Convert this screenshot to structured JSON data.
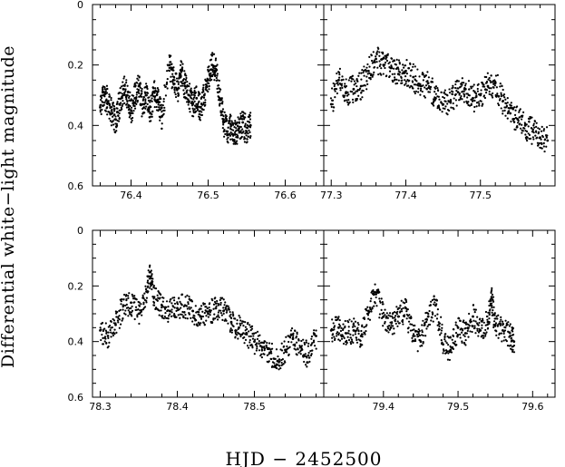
{
  "chart_data": {
    "type": "scatter",
    "xlabel": "HJD − 2452500",
    "ylabel": "Differential white−light magnitude",
    "ylim": [
      0.6,
      0
    ],
    "y_axis_inverted": true,
    "grid": false,
    "panels": [
      {
        "id": "top-left",
        "xlim": [
          76.35,
          76.65
        ],
        "xticks": [
          "76.4",
          "76.5",
          "76.6"
        ],
        "yticks": [
          "0",
          "0.2",
          "0.4",
          "0.6"
        ],
        "series": [
          {
            "x": [
              76.36,
              76.365,
              76.37,
              76.375,
              76.38,
              76.385,
              76.39,
              76.395,
              76.4,
              76.405,
              76.41,
              76.415,
              76.42,
              76.425,
              76.43,
              76.435,
              76.44,
              76.45,
              76.455,
              76.46,
              76.465,
              76.47,
              76.475,
              76.48,
              76.485,
              76.49,
              76.495,
              76.5,
              76.505,
              76.51,
              76.515,
              76.52,
              76.525,
              76.53,
              76.535,
              76.54,
              76.545,
              76.55,
              76.555
            ],
            "y": [
              0.34,
              0.3,
              0.32,
              0.36,
              0.38,
              0.33,
              0.28,
              0.3,
              0.35,
              0.31,
              0.27,
              0.33,
              0.3,
              0.36,
              0.29,
              0.32,
              0.37,
              0.2,
              0.25,
              0.28,
              0.22,
              0.27,
              0.3,
              0.33,
              0.31,
              0.34,
              0.3,
              0.25,
              0.2,
              0.22,
              0.31,
              0.38,
              0.42,
              0.4,
              0.43,
              0.41,
              0.39,
              0.42,
              0.4
            ]
          }
        ]
      },
      {
        "id": "top-right",
        "xlim": [
          77.29,
          77.6
        ],
        "xticks": [
          "77.3",
          "77.4",
          "77.5"
        ],
        "yticks": [],
        "series": [
          {
            "x": [
              77.3,
              77.31,
              77.32,
              77.33,
              77.34,
              77.35,
              77.36,
              77.37,
              77.38,
              77.39,
              77.4,
              77.41,
              77.42,
              77.43,
              77.44,
              77.45,
              77.46,
              77.47,
              77.48,
              77.49,
              77.5,
              77.51,
              77.52,
              77.53,
              77.54,
              77.55,
              77.56,
              77.57,
              77.58,
              77.59
            ],
            "y": [
              0.33,
              0.25,
              0.29,
              0.28,
              0.27,
              0.22,
              0.18,
              0.2,
              0.21,
              0.23,
              0.22,
              0.24,
              0.27,
              0.26,
              0.31,
              0.33,
              0.32,
              0.29,
              0.28,
              0.31,
              0.3,
              0.27,
              0.26,
              0.32,
              0.36,
              0.38,
              0.4,
              0.42,
              0.44,
              0.45
            ]
          }
        ]
      },
      {
        "id": "bottom-left",
        "xlim": [
          78.29,
          78.59
        ],
        "xticks": [
          "78.3",
          "78.4",
          "78.5"
        ],
        "yticks": [
          "0",
          "0.2",
          "0.4",
          "0.6"
        ],
        "series": [
          {
            "x": [
              78.3,
              78.31,
              78.32,
              78.33,
              78.34,
              78.35,
              78.36,
              78.365,
              78.37,
              78.38,
              78.39,
              78.4,
              78.41,
              78.42,
              78.43,
              78.44,
              78.45,
              78.46,
              78.47,
              78.48,
              78.49,
              78.5,
              78.51,
              78.52,
              78.53,
              78.54,
              78.55,
              78.56,
              78.57,
              78.58
            ],
            "y": [
              0.36,
              0.38,
              0.34,
              0.27,
              0.26,
              0.3,
              0.22,
              0.15,
              0.24,
              0.27,
              0.29,
              0.28,
              0.27,
              0.29,
              0.31,
              0.3,
              0.28,
              0.29,
              0.33,
              0.35,
              0.37,
              0.4,
              0.42,
              0.44,
              0.47,
              0.43,
              0.39,
              0.42,
              0.45,
              0.38
            ]
          }
        ]
      },
      {
        "id": "bottom-right",
        "xlim": [
          79.32,
          79.63
        ],
        "xticks": [
          "79.4",
          "79.5",
          "79.6"
        ],
        "yticks": [],
        "series": [
          {
            "x": [
              79.33,
              79.34,
              79.35,
              79.36,
              79.37,
              79.38,
              79.39,
              79.4,
              79.41,
              79.42,
              79.43,
              79.44,
              79.45,
              79.46,
              79.47,
              79.48,
              79.49,
              79.5,
              79.51,
              79.52,
              79.53,
              79.54,
              79.545,
              79.55,
              79.56,
              79.57,
              79.575
            ],
            "y": [
              0.36,
              0.35,
              0.37,
              0.36,
              0.38,
              0.29,
              0.23,
              0.31,
              0.35,
              0.31,
              0.28,
              0.38,
              0.4,
              0.31,
              0.27,
              0.41,
              0.43,
              0.35,
              0.37,
              0.31,
              0.36,
              0.33,
              0.24,
              0.34,
              0.36,
              0.38,
              0.4
            ]
          }
        ]
      }
    ]
  }
}
